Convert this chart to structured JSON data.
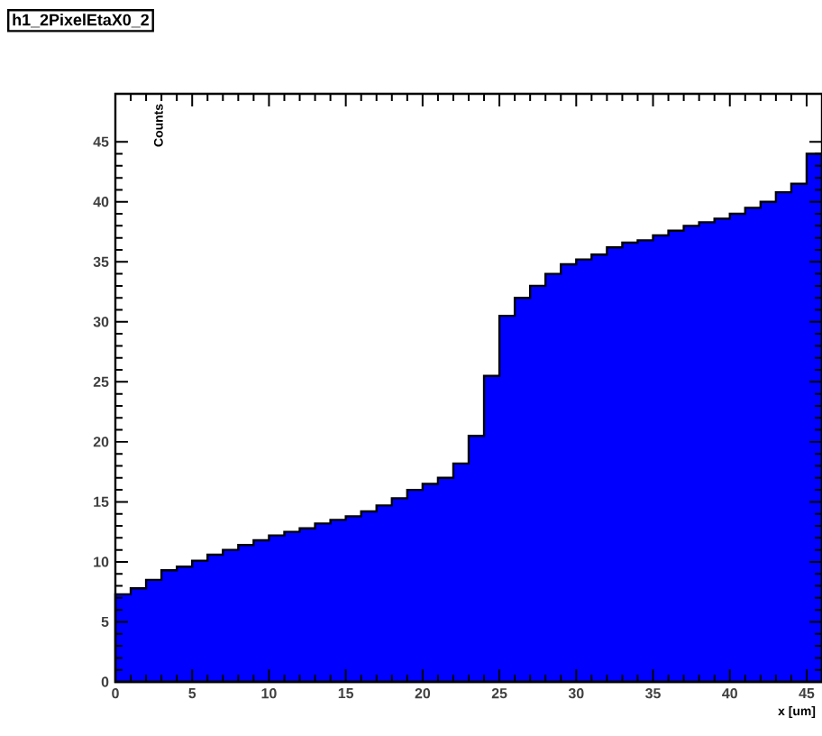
{
  "chart_data": {
    "type": "histogram",
    "title": "h1_2PixelEtaX0_2",
    "xlabel": "x [um]",
    "ylabel": "Counts",
    "color": "#0000ff",
    "bins": [
      0,
      1,
      2,
      3,
      4,
      5,
      6,
      7,
      8,
      9,
      10,
      11,
      12,
      13,
      14,
      15,
      16,
      17,
      18,
      19,
      20,
      21,
      22,
      23,
      24,
      25,
      26,
      27,
      28,
      29,
      30,
      31,
      32,
      33,
      34,
      35,
      36,
      37,
      38,
      39,
      40,
      41,
      42,
      43,
      44,
      45,
      46
    ],
    "values": [
      7.3,
      7.8,
      8.5,
      9.3,
      9.6,
      10.1,
      10.6,
      11.0,
      11.4,
      11.8,
      12.2,
      12.5,
      12.8,
      13.2,
      13.5,
      13.8,
      14.2,
      14.7,
      15.3,
      16.0,
      16.5,
      17.0,
      18.2,
      20.5,
      25.5,
      30.5,
      32,
      33,
      34,
      34.8,
      35.2,
      35.6,
      36.2,
      36.6,
      36.8,
      37.2,
      37.6,
      38,
      38.3,
      38.6,
      39,
      39.5,
      40,
      40.8,
      41.5,
      44
    ],
    "xlim": [
      0,
      46
    ],
    "ylim": [
      0,
      49
    ],
    "xticks": [
      0,
      5,
      10,
      15,
      20,
      25,
      30,
      35,
      40,
      45
    ],
    "yticks": [
      0,
      5,
      10,
      15,
      20,
      25,
      30,
      35,
      40,
      45
    ]
  }
}
